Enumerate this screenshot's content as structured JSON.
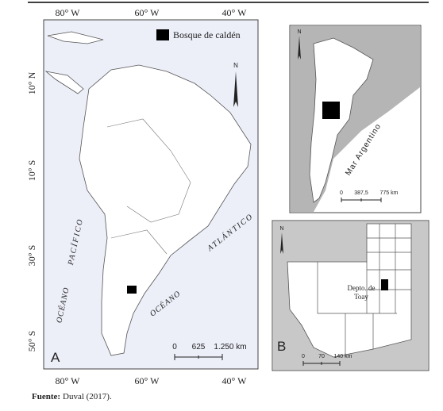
{
  "panel_a": {
    "label": "A",
    "legend": "Bosque de caldén",
    "lon_labels_top": [
      "80° W",
      "60° W",
      "40° W"
    ],
    "lon_labels_bottom": [
      "80° W",
      "60° W",
      "40° W"
    ],
    "lat_labels": [
      "10° N",
      "10° S",
      "30° S",
      "50° S"
    ],
    "north": "N",
    "pacific": [
      "OCÉANO",
      "PACÍFICO"
    ],
    "atlantic": [
      "OCÉANO",
      "ATLÁNTICO"
    ],
    "scale": [
      "0",
      "625",
      "1.250 km"
    ]
  },
  "inset_argentina": {
    "north": "N",
    "sea_label": "Mar Argentino",
    "scale": [
      "0",
      "387,5",
      "775 km"
    ]
  },
  "panel_b": {
    "label": "B",
    "north": "N",
    "place_label": [
      "Depto. de",
      "Toay"
    ],
    "scale": [
      "0",
      "70",
      "140 km"
    ]
  },
  "source": {
    "label": "Fuente:",
    "text": "Duval (2017)."
  }
}
